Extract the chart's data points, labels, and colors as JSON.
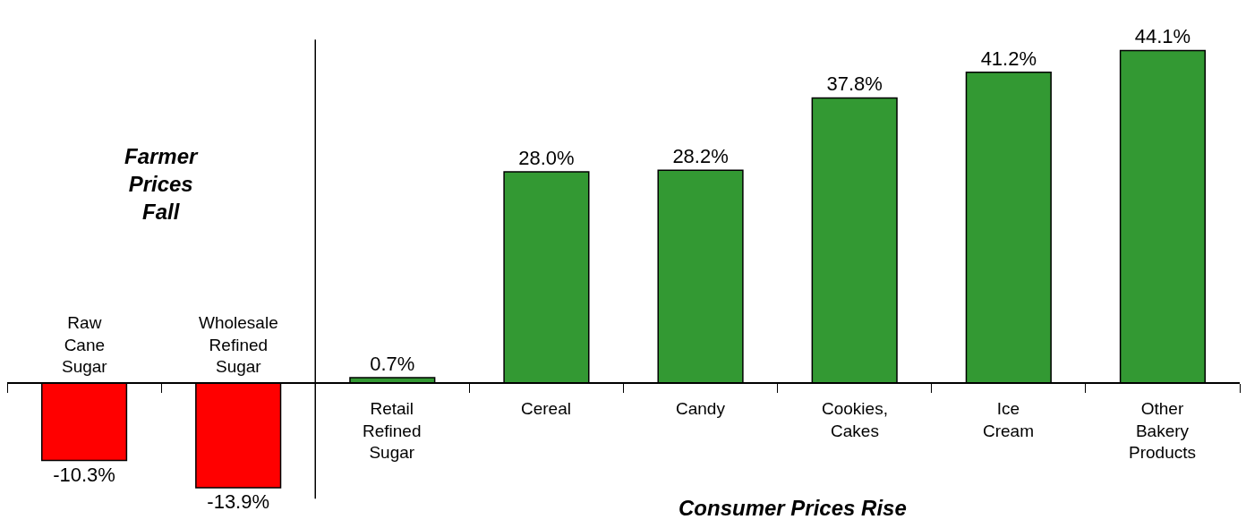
{
  "chart_data": {
    "type": "bar",
    "categories": [
      "Raw\nCane\nSugar",
      "Wholesale\nRefined\nSugar",
      "Retail\nRefined\nSugar",
      "Cereal",
      "Candy",
      "Cookies,\nCakes",
      "Ice\nCream",
      "Other\nBakery\nProducts"
    ],
    "values": [
      -10.3,
      -13.9,
      0.7,
      28.0,
      28.2,
      37.8,
      41.2,
      44.1
    ],
    "colors": [
      "#ff0000",
      "#ff0000",
      "#339933",
      "#339933",
      "#339933",
      "#339933",
      "#339933",
      "#339933"
    ],
    "value_labels": [
      "-10.3%",
      "-13.9%",
      "0.7%",
      "28.0%",
      "28.2%",
      "37.8%",
      "41.2%",
      "44.1%"
    ],
    "annotations": [
      "Farmer\nPrices\nFall",
      "Consumer Prices Rise"
    ],
    "tick_labels": "x"
  }
}
